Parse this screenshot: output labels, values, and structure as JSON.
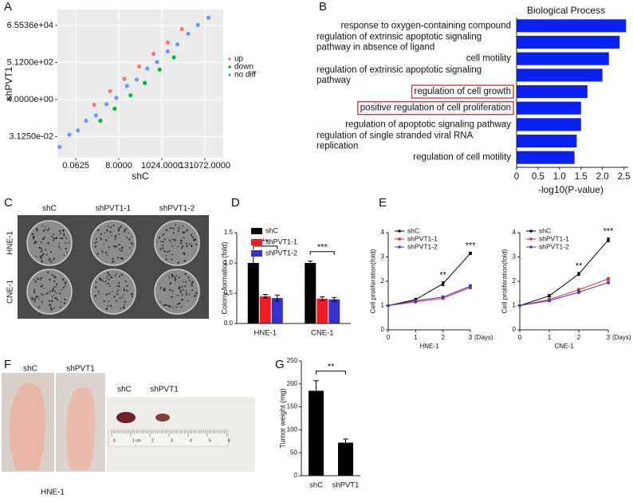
{
  "chart_data": [
    {
      "type": "scatter",
      "panel": "A",
      "xlabel": "shC",
      "ylabel": "shPVT1",
      "xscale": "log2",
      "yscale": "log2",
      "xlim": [
        0.0078125,
        1048576
      ],
      "ylim": [
        0.001953125,
        524288
      ],
      "xticks": [
        0.0625,
        {
          "value": 8,
          "label": "8.0000"
        },
        {
          "value": 1024,
          "label": "1024.0000"
        },
        {
          "value": 131072,
          "label": "131072.0000"
        }
      ],
      "yticks": [
        {
          "value": 0.03125,
          "label": "3.1250e-02"
        },
        {
          "value": 4,
          "label": "4.0000e+00"
        },
        {
          "value": 512,
          "label": "5.1200e+02"
        },
        {
          "value": 65536,
          "label": "6.5536e+04"
        }
      ],
      "grid": true,
      "legend": "right",
      "series": [
        {
          "name": "up",
          "color": "#f8766d",
          "x": [
            0.5,
            3,
            15,
            80,
            400,
            2000,
            10000
          ],
          "values": [
            2,
            12,
            60,
            300,
            1600,
            7000,
            40000
          ]
        },
        {
          "name": "down",
          "color": "#00ba38",
          "x": [
            1,
            5,
            30,
            150,
            800,
            4000
          ],
          "values": [
            0.25,
            1.2,
            7,
            35,
            200,
            1000
          ]
        },
        {
          "name": "no diff",
          "color": "#619cff",
          "x": [
            0.01,
            0.03,
            0.08,
            0.2,
            0.6,
            2,
            6,
            20,
            60,
            200,
            600,
            2000,
            6000,
            20000,
            60000,
            200000
          ],
          "values": [
            0.008,
            0.04,
            0.07,
            0.25,
            0.5,
            2.2,
            5,
            24,
            55,
            230,
            550,
            2200,
            5500,
            22000,
            70000,
            180000
          ]
        }
      ]
    },
    {
      "type": "bar",
      "orientation": "horizontal",
      "panel": "B",
      "title": "Biological Process",
      "xlabel": "-log10(P-value)",
      "categories": [
        [
          "response to oxygen-containing compound"
        ],
        [
          "regulation of extrinsic apoptotic signaling",
          "pathway in absence of ligand"
        ],
        [
          "cell motility"
        ],
        [
          "regulation of extrinsic apoptotic signaling",
          "pathway"
        ],
        [
          "regulation of cell growth"
        ],
        [
          "positive regulation of cell proliferation"
        ],
        [
          "regulation of apoptotic signaling pathway"
        ],
        [
          "regulation of single stranded viral RNA",
          "replication"
        ],
        [
          "regulation of cell motility"
        ]
      ],
      "values": [
        2.55,
        2.4,
        2.15,
        2.0,
        1.65,
        1.5,
        1.5,
        1.4,
        1.35
      ],
      "color": "#0a22f0",
      "highlight": [
        4,
        5
      ],
      "highlight_color": "#d03030",
      "xlim": [
        0,
        2.6
      ],
      "xticks": [
        0,
        0.5,
        {
          "value": 1,
          "label": "1.0"
        },
        1.5,
        {
          "value": 2,
          "label": "2.0"
        },
        2.5
      ]
    },
    {
      "type": "bar",
      "panel": "D",
      "ylabel": "Colony formation (fold)",
      "categories": [
        "HNE-1",
        "CNE-1"
      ],
      "ylim": [
        0,
        1.5
      ],
      "yticks": [
        {
          "value": 0,
          "label": "0.0"
        },
        0.5,
        {
          "value": 1,
          "label": "1.0"
        },
        1.5
      ],
      "series": [
        {
          "name": "shC",
          "color": "#000000",
          "values": [
            1.0,
            1.0
          ],
          "errors": [
            0.12,
            0.03
          ]
        },
        {
          "name": "shPVT1-1",
          "color": "#ee1c25",
          "values": [
            0.45,
            0.41
          ],
          "errors": [
            0.03,
            0.03
          ]
        },
        {
          "name": "shPVT1-2",
          "color": "#3333cc",
          "values": [
            0.42,
            0.4
          ],
          "errors": [
            0.05,
            0.03
          ]
        }
      ],
      "annotations": [
        {
          "text": "**",
          "category": 0
        },
        {
          "text": "***",
          "category": 1
        }
      ]
    },
    {
      "type": "line",
      "panel": "E",
      "xlabel": "HNE-1",
      "ylabel": "Cell proliferation(fold)",
      "x_unit": "(Days)",
      "x": [
        0,
        1,
        2,
        3
      ],
      "xlim": [
        0,
        3
      ],
      "xticks": [
        0,
        1,
        2,
        3
      ],
      "ylim": [
        0,
        4
      ],
      "yticks": [
        0,
        1,
        2,
        3,
        4
      ],
      "series": [
        {
          "name": "shC",
          "color": "#000000",
          "values": [
            1,
            1.25,
            1.9,
            3.15
          ],
          "errors": [
            0.02,
            0.05,
            0.08,
            0.05
          ]
        },
        {
          "name": "shPVT1-1",
          "color": "#e8262a",
          "values": [
            1,
            1.15,
            1.3,
            1.75
          ],
          "errors": [
            0.02,
            0.04,
            0.05,
            0.06
          ]
        },
        {
          "name": "shPVT1-2",
          "color": "#3a3ac8",
          "values": [
            1,
            1.2,
            1.35,
            1.8
          ],
          "errors": [
            0.02,
            0.04,
            0.05,
            0.06
          ]
        }
      ],
      "annotations": [
        {
          "text": "**",
          "x": 2
        },
        {
          "text": "***",
          "x": 3
        }
      ]
    },
    {
      "type": "line",
      "xlabel": "CNE-1",
      "ylabel": "Cell proliferation(fold)",
      "x_unit": "(Days)",
      "x": [
        0,
        1,
        2,
        3
      ],
      "xlim": [
        0,
        3
      ],
      "xticks": [
        0,
        1,
        2,
        3
      ],
      "ylim": [
        0,
        4
      ],
      "yticks": [
        0,
        1,
        2,
        3,
        4
      ],
      "series": [
        {
          "name": "shC",
          "color": "#000000",
          "values": [
            1,
            1.4,
            2.3,
            3.7
          ],
          "errors": [
            0.02,
            0.05,
            0.06,
            0.08
          ]
        },
        {
          "name": "shPVT1-1",
          "color": "#e8262a",
          "values": [
            1,
            1.25,
            1.65,
            2.1
          ],
          "errors": [
            0.02,
            0.04,
            0.05,
            0.05
          ]
        },
        {
          "name": "shPVT1-2",
          "color": "#3a3ac8",
          "values": [
            1,
            1.2,
            1.55,
            1.95
          ],
          "errors": [
            0.02,
            0.04,
            0.05,
            0.05
          ]
        }
      ],
      "annotations": [
        {
          "text": "**",
          "x": 2
        },
        {
          "text": "***",
          "x": 3
        }
      ]
    },
    {
      "type": "bar",
      "panel": "G",
      "ylabel": "Tumor weight (mg)",
      "categories": [
        "shC",
        "shPVT1"
      ],
      "values": [
        185,
        72
      ],
      "errors": [
        22,
        8
      ],
      "color": "#000000",
      "ylim": [
        0,
        250
      ],
      "yticks": [
        0,
        50,
        100,
        150,
        200,
        250
      ],
      "annotations": [
        {
          "text": "**"
        }
      ]
    }
  ],
  "photos": {
    "C": {
      "panel": "C",
      "columns": [
        "shC",
        "shPVT1-1",
        "shPVT1-2"
      ],
      "rows": [
        "HNE-1",
        "CNE-1"
      ]
    },
    "F": {
      "panel": "F",
      "mice": [
        "shC",
        "shPVT1"
      ],
      "tumors": [
        "shC",
        "shPVT1"
      ],
      "caption": "HNE-1",
      "ruler": [
        "0",
        "1 cm",
        "2",
        "3",
        "4",
        "5",
        "6"
      ]
    }
  }
}
